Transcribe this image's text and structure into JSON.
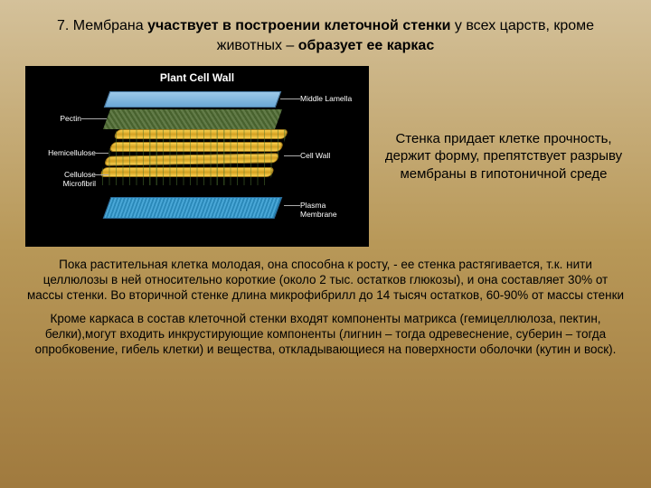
{
  "title": {
    "prefix": "7. Мембрана ",
    "bold1": "участвует в построении клеточной стенки",
    "mid": " у всех царств, кроме животных – ",
    "bold2": "образует ее каркас"
  },
  "diagram": {
    "title": "Plant Cell Wall",
    "labels": {
      "pectin": "Pectin",
      "hemi": "Hemicellulose",
      "micro": "Cellulose Microfibril",
      "lamella": "Middle Lamella",
      "wall": "Cell Wall",
      "plasma": "Plasma Membrane"
    },
    "colors": {
      "bg": "#000000",
      "lamella": "#6aa8d6",
      "fibril": "#f8d050",
      "plasma": "#4aa8d8",
      "pectin": "#5a7a3a"
    }
  },
  "side_text": "Стенка придает клетке прочность, держит форму, препятствует разрыву мембраны в гипотоничной среде",
  "para1": "Пока растительная клетка молодая, она способна к росту, - ее стенка растягивается, т.к. нити целлюлозы в ней относительно короткие (около 2 тыс. остатков глюкозы), и она составляет 30% от массы стенки. Во вторичной стенке длина микрофибрилл до 14 тысяч остатков, 60-90% от массы стенки",
  "para2": "Кроме каркаса в состав клеточной стенки входят компоненты матрикса (гемицеллюлоза, пектин, белки),могут входить инкрустирующие компоненты (лигнин – тогда одревеснение, суберин – тогда опробковение, гибель клетки) и вещества, откладывающиеся на поверхности оболочки (кутин и воск)."
}
